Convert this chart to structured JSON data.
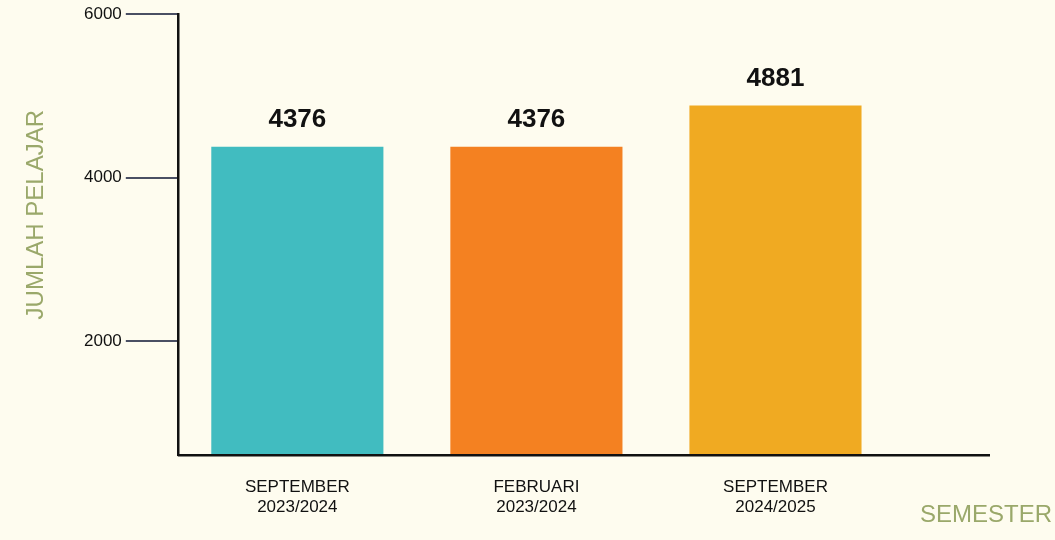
{
  "chart_data": {
    "type": "bar",
    "xlabel": "SEMESTER",
    "ylabel": "JUMLAH PELAJAR",
    "categories": [
      "SEPTEMBER 2023/2024",
      "FEBRUARI 2023/2024",
      "SEPTEMBER 2024/2025"
    ],
    "values": [
      4376,
      4376,
      4881
    ],
    "colors": [
      "#41bcc0",
      "#f48121",
      "#f0aa22"
    ],
    "ylim": [
      600,
      6000
    ],
    "yticks": [
      2000,
      4000,
      6000
    ],
    "grid": false,
    "legend": false,
    "data_labels": true
  }
}
